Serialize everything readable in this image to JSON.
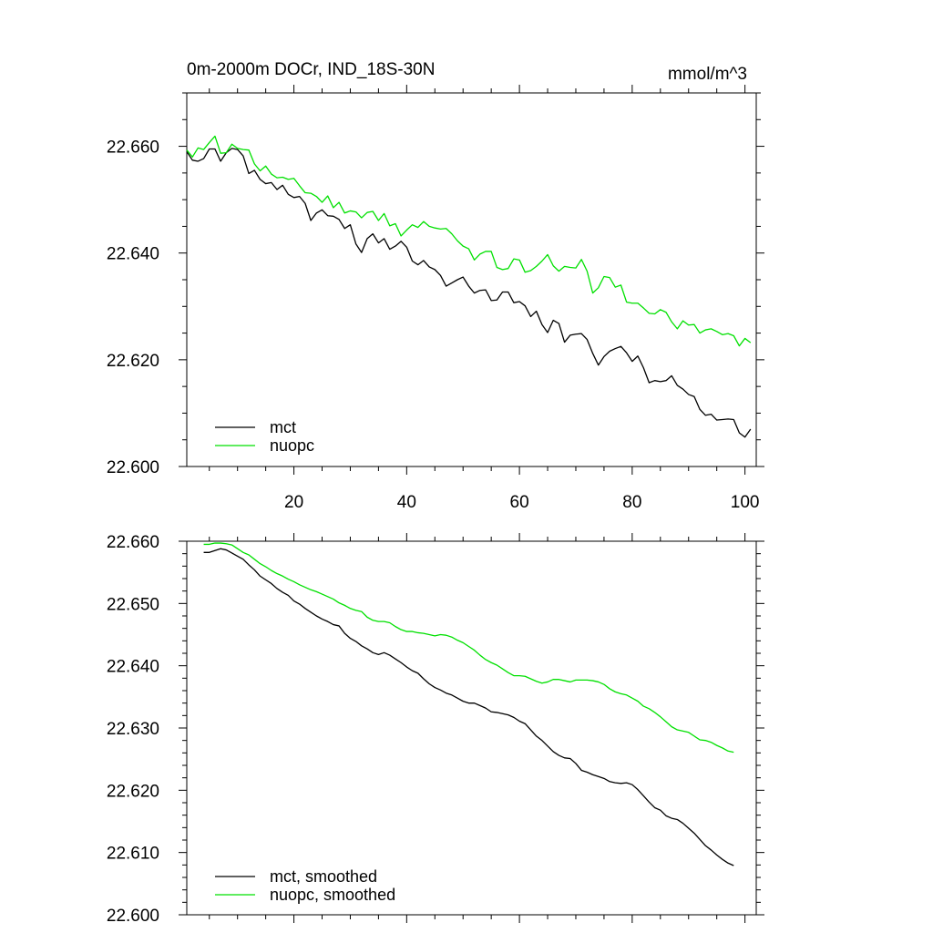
{
  "chart_data": [
    {
      "type": "line",
      "title": "0m-2000m DOCr, IND_18S-30N",
      "units": "mmol/m^3",
      "xlim": [
        1,
        102
      ],
      "ylim": [
        22.6,
        22.67
      ],
      "xticks": [
        20,
        40,
        60,
        80,
        100
      ],
      "yticks": [
        22.6,
        22.62,
        22.64,
        22.66
      ],
      "ytick_labels": [
        "22.600",
        "22.620",
        "22.640",
        "22.660"
      ],
      "show_xtick_labels": true,
      "legend": "bottom-left",
      "series": [
        {
          "name": "mct",
          "color": "#000000",
          "x": [
            1,
            2,
            3,
            4,
            5,
            6,
            7,
            8,
            9,
            10,
            11,
            12,
            13,
            14,
            15,
            16,
            17,
            18,
            19,
            20,
            21,
            22,
            23,
            24,
            25,
            26,
            27,
            28,
            29,
            30,
            31,
            32,
            33,
            34,
            35,
            36,
            37,
            38,
            39,
            40,
            41,
            42,
            43,
            44,
            45,
            46,
            47,
            48,
            49,
            50,
            51,
            52,
            53,
            54,
            55,
            56,
            57,
            58,
            59,
            60,
            61,
            62,
            63,
            64,
            65,
            66,
            67,
            68,
            69,
            70,
            71,
            72,
            73,
            74,
            75,
            76,
            77,
            78,
            79,
            80,
            81,
            82,
            83,
            84,
            85,
            86,
            87,
            88,
            89,
            90,
            91,
            92,
            93,
            94,
            95,
            96,
            97,
            98,
            99,
            100,
            101
          ],
          "values": [
            22.659,
            22.6574,
            22.6572,
            22.6577,
            22.6595,
            22.6595,
            22.6572,
            22.6588,
            22.6596,
            22.6594,
            22.6582,
            22.6549,
            22.6555,
            22.6538,
            22.653,
            22.6532,
            22.6519,
            22.6527,
            22.651,
            22.6504,
            22.6506,
            22.6493,
            22.6461,
            22.6475,
            22.6481,
            22.647,
            22.6469,
            22.6463,
            22.6446,
            22.6453,
            22.6417,
            22.6401,
            22.6427,
            22.6436,
            22.6419,
            22.6427,
            22.6407,
            22.6413,
            22.6422,
            22.6411,
            22.6385,
            22.6378,
            22.6386,
            22.6374,
            22.6369,
            22.6358,
            22.6338,
            22.6344,
            22.635,
            22.6355,
            22.6338,
            22.6325,
            22.633,
            22.6331,
            22.6311,
            22.6312,
            22.6327,
            22.6327,
            22.6307,
            22.6309,
            22.6301,
            22.6281,
            22.6291,
            22.6266,
            22.6251,
            22.6274,
            22.6268,
            22.6233,
            22.6246,
            22.6248,
            22.6249,
            22.6238,
            22.6212,
            22.619,
            22.6206,
            22.6216,
            22.6221,
            22.6225,
            22.6213,
            22.6197,
            22.6207,
            22.6185,
            22.6157,
            22.6161,
            22.6159,
            22.6161,
            22.617,
            22.6152,
            22.6145,
            22.6135,
            22.6131,
            22.6107,
            22.6096,
            22.6098,
            22.6087,
            22.6088,
            22.6089,
            22.6088,
            22.6063,
            22.6055,
            22.607
          ]
        },
        {
          "name": "nuopc",
          "color": "#00e000",
          "x": [
            1,
            2,
            3,
            4,
            5,
            6,
            7,
            8,
            9,
            10,
            11,
            12,
            13,
            14,
            15,
            16,
            17,
            18,
            19,
            20,
            21,
            22,
            23,
            24,
            25,
            26,
            27,
            28,
            29,
            30,
            31,
            32,
            33,
            34,
            35,
            36,
            37,
            38,
            39,
            40,
            41,
            42,
            43,
            44,
            45,
            46,
            47,
            48,
            49,
            50,
            51,
            52,
            53,
            54,
            55,
            56,
            57,
            58,
            59,
            60,
            61,
            62,
            63,
            64,
            65,
            66,
            67,
            68,
            69,
            70,
            71,
            72,
            73,
            74,
            75,
            76,
            77,
            78,
            79,
            80,
            81,
            82,
            83,
            84,
            85,
            86,
            87,
            88,
            89,
            90,
            91,
            92,
            93,
            94,
            95,
            96,
            97,
            98,
            99,
            100,
            101
          ],
          "values": [
            22.6593,
            22.658,
            22.6597,
            22.6594,
            22.6607,
            22.6619,
            22.6587,
            22.6588,
            22.6604,
            22.6596,
            22.6594,
            22.6593,
            22.6567,
            22.6554,
            22.6563,
            22.6548,
            22.6541,
            22.6542,
            22.6538,
            22.654,
            22.6526,
            22.6513,
            22.6512,
            22.6506,
            22.6495,
            22.6507,
            22.6485,
            22.6495,
            22.6475,
            22.6479,
            22.6477,
            22.6466,
            22.6476,
            22.6478,
            22.6461,
            22.6474,
            22.6451,
            22.6455,
            22.6432,
            22.6443,
            22.6453,
            22.6448,
            22.6459,
            22.645,
            22.6447,
            22.6445,
            22.6446,
            22.6436,
            22.6423,
            22.6413,
            22.6408,
            22.6387,
            22.6398,
            22.6403,
            22.6403,
            22.6373,
            22.6369,
            22.6371,
            22.6389,
            22.6387,
            22.6364,
            22.6367,
            22.6375,
            22.6385,
            22.6397,
            22.6376,
            22.6366,
            22.6375,
            22.6373,
            22.6372,
            22.6388,
            22.6366,
            22.6325,
            22.6335,
            22.6356,
            22.6354,
            22.6336,
            22.634,
            22.6308,
            22.6306,
            22.6306,
            22.6297,
            22.6287,
            22.6286,
            22.6294,
            22.6289,
            22.6271,
            22.6258,
            22.6273,
            22.6265,
            22.6266,
            22.625,
            22.6256,
            22.6258,
            22.6253,
            22.6247,
            22.6249,
            22.6245,
            22.6226,
            22.624,
            22.6232
          ]
        }
      ]
    },
    {
      "type": "line",
      "title": "",
      "xlim": [
        1,
        102
      ],
      "ylim": [
        22.6,
        22.66
      ],
      "xticks": [
        20,
        40,
        60,
        80,
        100
      ],
      "yticks": [
        22.6,
        22.61,
        22.62,
        22.63,
        22.64,
        22.65,
        22.66
      ],
      "ytick_labels": [
        "22.600",
        "22.610",
        "22.620",
        "22.630",
        "22.640",
        "22.650",
        "22.660"
      ],
      "show_xtick_labels": false,
      "legend": "bottom-left",
      "series": [
        {
          "name": "mct, smoothed",
          "color": "#000000",
          "x": [
            4,
            5,
            6,
            7,
            8,
            9,
            10,
            11,
            12,
            13,
            14,
            15,
            16,
            17,
            18,
            19,
            20,
            21,
            22,
            23,
            24,
            25,
            26,
            27,
            28,
            29,
            30,
            31,
            32,
            33,
            34,
            35,
            36,
            37,
            38,
            39,
            40,
            41,
            42,
            43,
            44,
            45,
            46,
            47,
            48,
            49,
            50,
            51,
            52,
            53,
            54,
            55,
            56,
            57,
            58,
            59,
            60,
            61,
            62,
            63,
            64,
            65,
            66,
            67,
            68,
            69,
            70,
            71,
            72,
            73,
            74,
            75,
            76,
            77,
            78,
            79,
            80,
            81,
            82,
            83,
            84,
            85,
            86,
            87,
            88,
            89,
            90,
            91,
            92,
            93,
            94,
            95,
            96,
            97,
            98
          ],
          "values": [
            22.6582,
            22.6582,
            22.6585,
            22.6588,
            22.6586,
            22.6581,
            22.6576,
            22.6571,
            22.6562,
            22.6554,
            22.6544,
            22.6538,
            22.6532,
            22.6524,
            22.6518,
            22.6513,
            22.6504,
            22.6499,
            22.6492,
            22.6486,
            22.648,
            22.6475,
            22.6471,
            22.6466,
            22.6464,
            22.6452,
            22.6444,
            22.6439,
            22.6432,
            22.6427,
            22.6421,
            22.6418,
            22.6421,
            22.6417,
            22.6411,
            22.6405,
            22.6398,
            22.6392,
            22.6388,
            22.6379,
            22.6371,
            22.6365,
            22.6361,
            22.6356,
            22.6353,
            22.6348,
            22.6343,
            22.634,
            22.634,
            22.6336,
            22.6332,
            22.6326,
            22.6325,
            22.6323,
            22.6321,
            22.6317,
            22.6311,
            22.6307,
            22.6297,
            22.6287,
            22.628,
            22.6271,
            22.6262,
            22.6256,
            22.6252,
            22.6251,
            22.6243,
            22.6232,
            22.6229,
            22.6225,
            22.6222,
            22.6219,
            22.6214,
            22.6212,
            22.6211,
            22.6212,
            22.6209,
            22.6201,
            22.6191,
            22.6181,
            22.6172,
            22.6168,
            22.6159,
            22.6155,
            22.6153,
            22.6147,
            22.6139,
            22.6131,
            22.6121,
            22.6111,
            22.6104,
            22.6096,
            22.6089,
            22.6083,
            22.6079
          ]
        },
        {
          "name": "nuopc, smoothed",
          "color": "#00e000",
          "x": [
            4,
            5,
            6,
            7,
            8,
            9,
            10,
            11,
            12,
            13,
            14,
            15,
            16,
            17,
            18,
            19,
            20,
            21,
            22,
            23,
            24,
            25,
            26,
            27,
            28,
            29,
            30,
            31,
            32,
            33,
            34,
            35,
            36,
            37,
            38,
            39,
            40,
            41,
            42,
            43,
            44,
            45,
            46,
            47,
            48,
            49,
            50,
            51,
            52,
            53,
            54,
            55,
            56,
            57,
            58,
            59,
            60,
            61,
            62,
            63,
            64,
            65,
            66,
            67,
            68,
            69,
            70,
            71,
            72,
            73,
            74,
            75,
            76,
            77,
            78,
            79,
            80,
            81,
            82,
            83,
            84,
            85,
            86,
            87,
            88,
            89,
            90,
            91,
            92,
            93,
            94,
            95,
            96,
            97,
            98
          ],
          "values": [
            22.6595,
            22.6595,
            22.6597,
            22.6597,
            22.6596,
            22.6594,
            22.6588,
            22.6582,
            22.6578,
            22.6571,
            22.6564,
            22.6559,
            22.6553,
            22.6548,
            22.6544,
            22.6539,
            22.6535,
            22.653,
            22.6526,
            22.6522,
            22.6519,
            22.6515,
            22.6511,
            22.6507,
            22.6501,
            22.6497,
            22.6492,
            22.6489,
            22.6487,
            22.6478,
            22.6473,
            22.6471,
            22.6471,
            22.6469,
            22.6463,
            22.6458,
            22.6455,
            22.6455,
            22.6453,
            22.6452,
            22.645,
            22.6448,
            22.645,
            22.6449,
            22.6446,
            22.6441,
            22.6437,
            22.6431,
            22.6425,
            22.6417,
            22.641,
            22.6405,
            22.6401,
            22.6395,
            22.6389,
            22.6384,
            22.6384,
            22.6383,
            22.6379,
            22.6375,
            22.6372,
            22.6374,
            22.6378,
            22.6378,
            22.6376,
            22.6374,
            22.6377,
            22.6377,
            22.6377,
            22.6376,
            22.6374,
            22.637,
            22.6363,
            22.6358,
            22.6355,
            22.6353,
            22.6348,
            22.6343,
            22.6335,
            22.6331,
            22.6325,
            22.6318,
            22.631,
            22.6302,
            22.6297,
            22.6295,
            22.6293,
            22.6287,
            22.6281,
            22.628,
            22.6277,
            22.6272,
            22.6268,
            22.6263,
            22.6261
          ]
        }
      ]
    }
  ]
}
